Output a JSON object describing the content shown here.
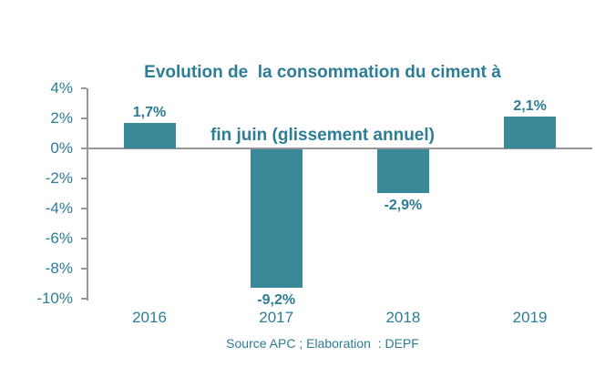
{
  "title": {
    "line1": "Evolution de  la consommation du ciment à",
    "line2": "fin juin (glissement annuel)"
  },
  "source": "Source APC ; Elaboration  : DEPF",
  "colors": {
    "text_teal": "#2D7D96",
    "bar": "#3A8999",
    "axis": "#969696"
  },
  "chart_data": {
    "type": "bar",
    "title": "Evolution de  la consommation du ciment à fin juin (glissement annuel)",
    "categories": [
      "2016",
      "2017",
      "2018",
      "2019"
    ],
    "values": [
      1.7,
      -9.2,
      -2.9,
      2.1
    ],
    "value_labels": [
      "1,7%",
      "-9,2%",
      "-2,9%",
      "2,1%"
    ],
    "xlabel": "",
    "ylabel": "",
    "ylim": [
      -10,
      4
    ],
    "yticks": [
      {
        "value": 4,
        "label": "4%"
      },
      {
        "value": 2,
        "label": "2%"
      },
      {
        "value": 0,
        "label": "0%"
      },
      {
        "value": -2,
        "label": "-2%"
      },
      {
        "value": -4,
        "label": "-4%"
      },
      {
        "value": -6,
        "label": "-6%"
      },
      {
        "value": -8,
        "label": "-8%"
      },
      {
        "value": -10,
        "label": "-10%"
      }
    ],
    "grid": false,
    "legend": false
  }
}
